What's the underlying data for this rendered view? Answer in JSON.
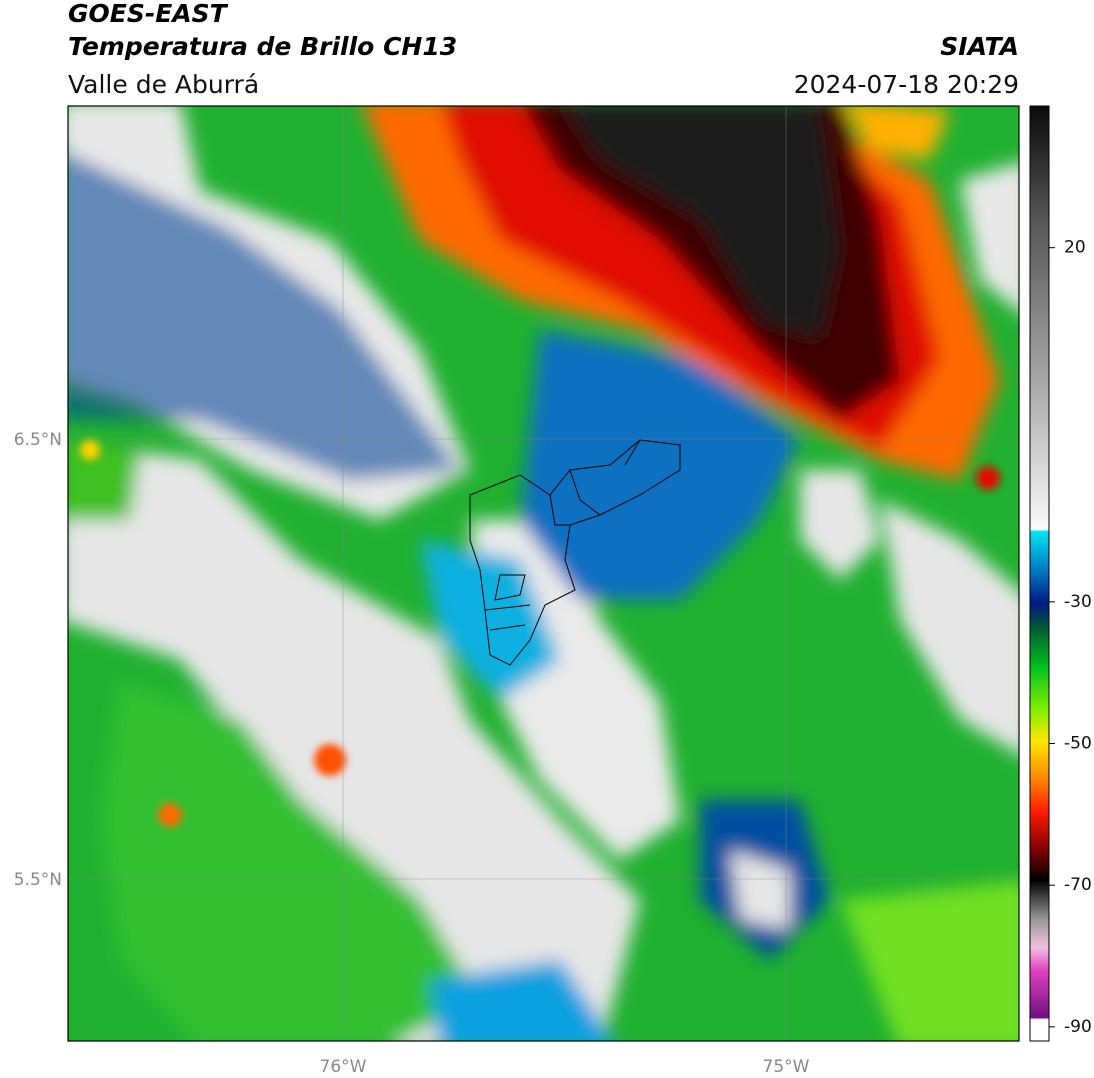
{
  "header": {
    "satellite": "GOES-EAST",
    "product": "Temperatura de Brillo CH13",
    "region": "Valle de Aburrá",
    "source": "SIATA",
    "datetime": "2024-07-18 20:29"
  },
  "map": {
    "lat_labels": [
      "6.5°N",
      "5.5°N"
    ],
    "lon_labels": [
      "76°W",
      "75°W"
    ]
  },
  "colorbar": {
    "lim": [
      -92,
      40
    ],
    "ticks": [
      20,
      -30,
      -50,
      -70,
      -90
    ]
  }
}
